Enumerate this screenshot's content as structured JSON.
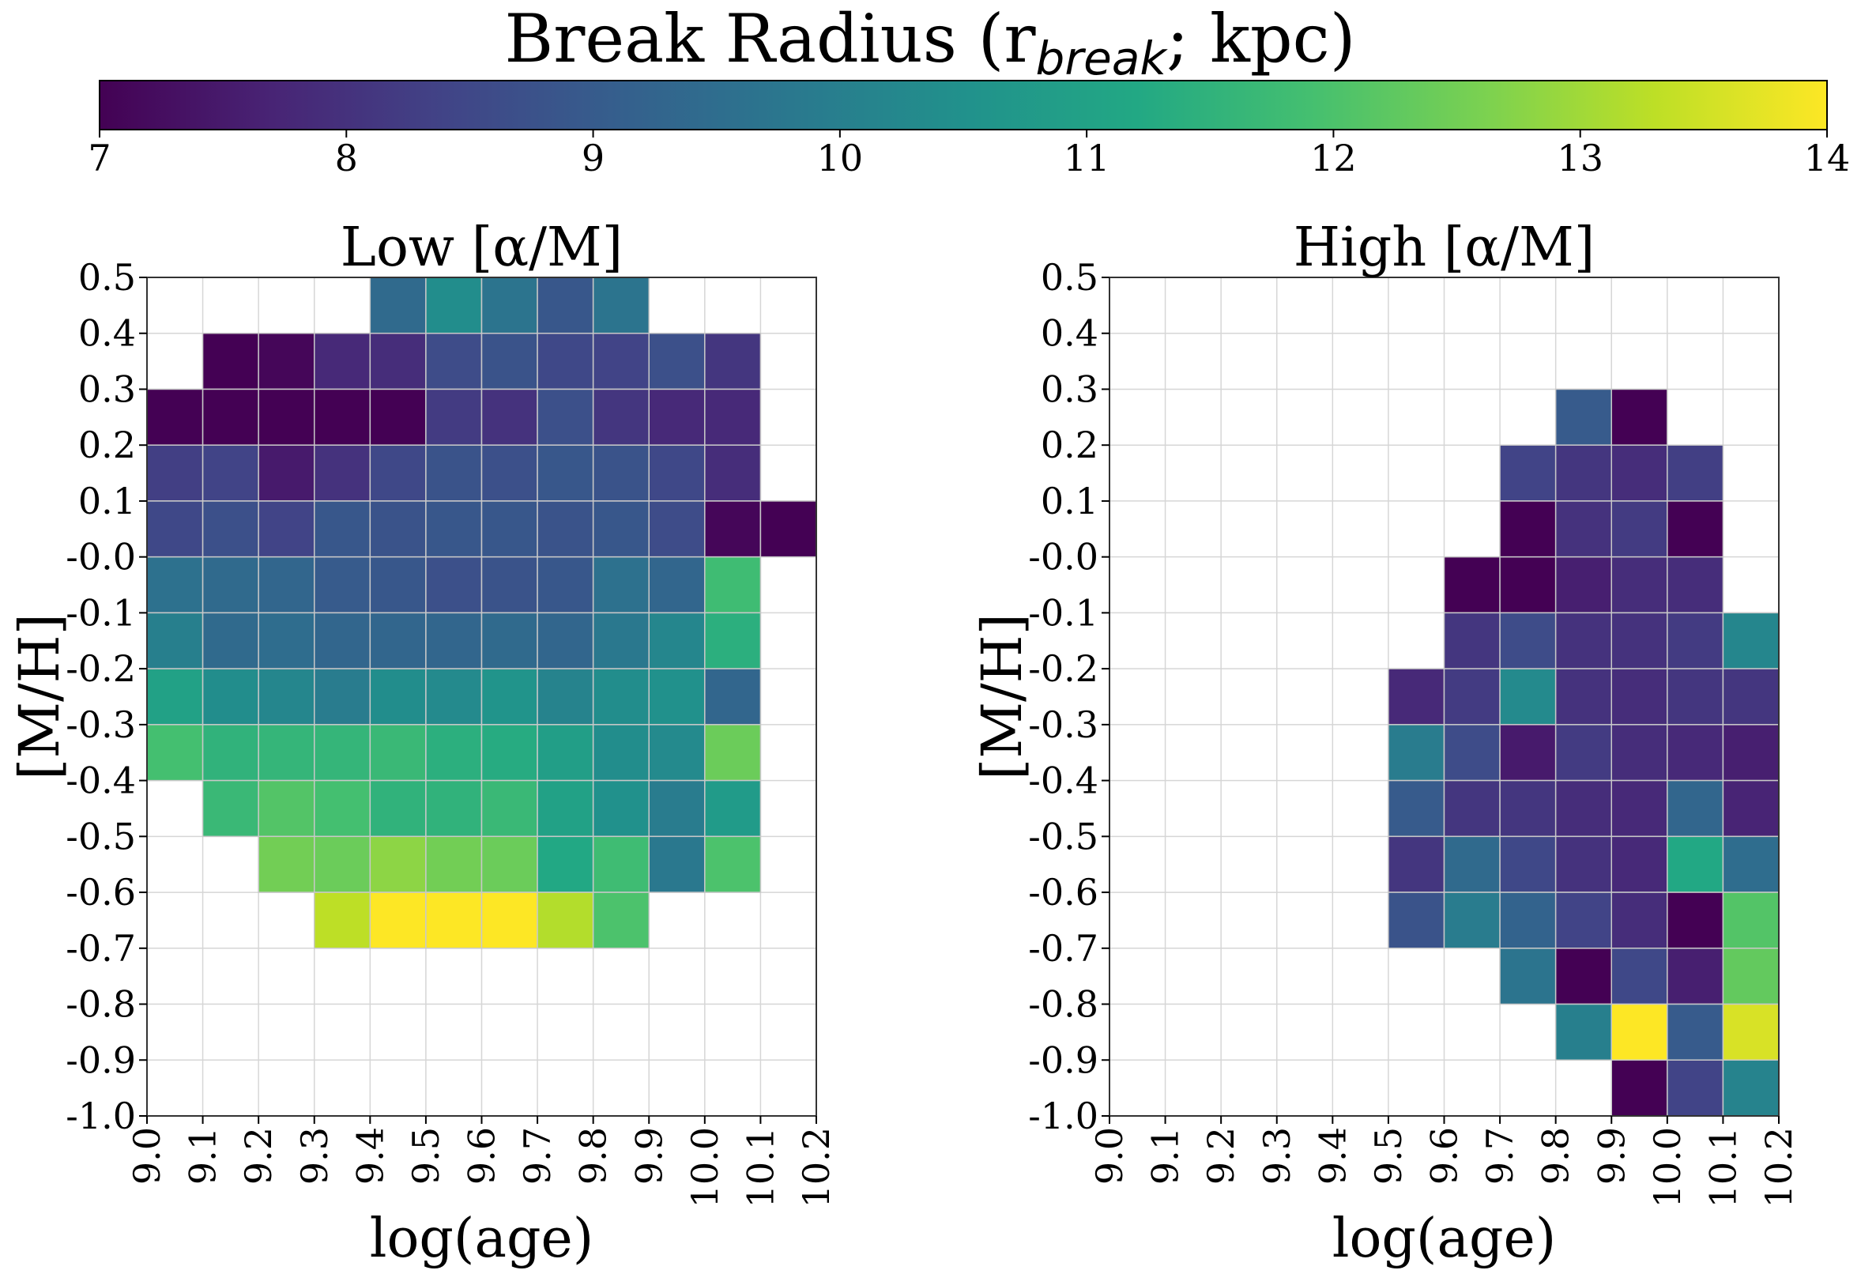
{
  "colorbar": {
    "label_main": "Break Radius (r",
    "label_sub": "break",
    "label_tail": "; kpc)",
    "vmin": 7,
    "vmax": 14,
    "ticks": [
      "7",
      "8",
      "9",
      "10",
      "11",
      "12",
      "13",
      "14"
    ],
    "colormap": "viridis"
  },
  "chart_data": [
    {
      "type": "heatmap",
      "title": "Low [α/M]",
      "xlabel": "log(age)",
      "ylabel": "[M/H]",
      "xlim": [
        9.0,
        10.2
      ],
      "ylim": [
        -1.0,
        0.5
      ],
      "x_ticks": [
        "9.0",
        "9.1",
        "9.2",
        "9.3",
        "9.4",
        "9.5",
        "9.6",
        "9.7",
        "9.8",
        "9.9",
        "10.0",
        "10.1",
        "10.2"
      ],
      "y_ticks": [
        "0.5",
        "0.4",
        "0.3",
        "0.2",
        "0.1",
        "-0.0",
        "-0.1",
        "-0.2",
        "-0.3",
        "-0.4",
        "-0.5",
        "-0.6",
        "-0.7",
        "-0.8",
        "-0.9",
        "-1.0"
      ],
      "x_bin_edges": [
        9.0,
        9.1,
        9.2,
        9.3,
        9.4,
        9.5,
        9.6,
        9.7,
        9.8,
        9.9,
        10.0,
        10.1,
        10.2
      ],
      "y_bin_edges_top_to_bottom": [
        0.5,
        0.4,
        0.3,
        0.2,
        0.1,
        0.0,
        -0.1,
        -0.2,
        -0.3,
        -0.4,
        -0.5,
        -0.6,
        -0.7,
        -0.8,
        -0.9,
        -1.0
      ],
      "grid": true,
      "values": [
        [
          null,
          null,
          null,
          null,
          9.4,
          10.4,
          9.7,
          8.9,
          9.7,
          null,
          null,
          null
        ],
        [
          null,
          7.0,
          7.1,
          7.8,
          7.9,
          8.6,
          8.8,
          8.5,
          8.4,
          8.7,
          8.1,
          null
        ],
        [
          7.0,
          7.0,
          7.0,
          7.0,
          7.0,
          8.2,
          8.0,
          8.7,
          8.1,
          7.8,
          7.8,
          null
        ],
        [
          8.3,
          8.4,
          7.5,
          8.0,
          8.5,
          8.8,
          8.7,
          8.9,
          8.8,
          8.5,
          7.9,
          null
        ],
        [
          8.5,
          8.7,
          8.4,
          8.9,
          8.8,
          8.9,
          8.9,
          8.8,
          8.9,
          8.6,
          7.1,
          7.0
        ],
        [
          9.6,
          9.4,
          9.3,
          9.0,
          8.9,
          8.7,
          8.8,
          8.9,
          9.6,
          9.3,
          11.8,
          null
        ],
        [
          10.0,
          9.4,
          9.5,
          9.3,
          9.3,
          9.3,
          9.4,
          9.3,
          9.8,
          10.2,
          11.4,
          null
        ],
        [
          11.0,
          10.4,
          10.2,
          9.9,
          10.4,
          10.3,
          10.6,
          10.1,
          10.4,
          10.5,
          9.3,
          null
        ],
        [
          11.9,
          11.5,
          11.6,
          11.6,
          11.7,
          11.4,
          11.3,
          10.9,
          10.4,
          10.3,
          12.4,
          null
        ],
        [
          null,
          11.7,
          12.1,
          11.9,
          11.5,
          11.5,
          11.7,
          11.0,
          10.5,
          9.9,
          10.8,
          null
        ],
        [
          null,
          null,
          12.5,
          12.4,
          12.8,
          12.5,
          12.4,
          11.2,
          11.8,
          9.8,
          12.0,
          null
        ],
        [
          null,
          null,
          null,
          13.3,
          14.0,
          14.0,
          14.0,
          13.2,
          12.0,
          null,
          null,
          null
        ],
        [
          null,
          null,
          null,
          null,
          null,
          null,
          null,
          null,
          null,
          null,
          null,
          null
        ],
        [
          null,
          null,
          null,
          null,
          null,
          null,
          null,
          null,
          null,
          null,
          null,
          null
        ],
        [
          null,
          null,
          null,
          null,
          null,
          null,
          null,
          null,
          null,
          null,
          null,
          null
        ]
      ]
    },
    {
      "type": "heatmap",
      "title": "High [α/M]",
      "xlabel": "log(age)",
      "ylabel": "[M/H]",
      "xlim": [
        9.0,
        10.2
      ],
      "ylim": [
        -1.0,
        0.5
      ],
      "x_ticks": [
        "9.0",
        "9.1",
        "9.2",
        "9.3",
        "9.4",
        "9.5",
        "9.6",
        "9.7",
        "9.8",
        "9.9",
        "10.0",
        "10.1",
        "10.2"
      ],
      "y_ticks": [
        "0.5",
        "0.4",
        "0.3",
        "0.2",
        "0.1",
        "-0.0",
        "-0.1",
        "-0.2",
        "-0.3",
        "-0.4",
        "-0.5",
        "-0.6",
        "-0.7",
        "-0.8",
        "-0.9",
        "-1.0"
      ],
      "x_bin_edges": [
        9.0,
        9.1,
        9.2,
        9.3,
        9.4,
        9.5,
        9.6,
        9.7,
        9.8,
        9.9,
        10.0,
        10.1,
        10.2
      ],
      "y_bin_edges_top_to_bottom": [
        0.5,
        0.4,
        0.3,
        0.2,
        0.1,
        0.0,
        -0.1,
        -0.2,
        -0.3,
        -0.4,
        -0.5,
        -0.6,
        -0.7,
        -0.8,
        -0.9,
        -1.0
      ],
      "grid": true,
      "values": [
        [
          null,
          null,
          null,
          null,
          null,
          null,
          null,
          null,
          null,
          null,
          null,
          null
        ],
        [
          null,
          null,
          null,
          null,
          null,
          null,
          null,
          null,
          null,
          null,
          null,
          null
        ],
        [
          null,
          null,
          null,
          null,
          null,
          null,
          null,
          null,
          9.0,
          7.0,
          null,
          null
        ],
        [
          null,
          null,
          null,
          null,
          null,
          null,
          null,
          8.4,
          8.1,
          7.9,
          8.3,
          null
        ],
        [
          null,
          null,
          null,
          null,
          null,
          null,
          null,
          7.0,
          8.0,
          8.2,
          7.0,
          null
        ],
        [
          null,
          null,
          null,
          null,
          null,
          null,
          7.0,
          7.0,
          7.6,
          7.9,
          7.9,
          null
        ],
        [
          null,
          null,
          null,
          null,
          null,
          null,
          8.1,
          8.6,
          8.0,
          8.0,
          8.2,
          10.2
        ],
        [
          null,
          null,
          null,
          null,
          null,
          7.8,
          8.2,
          10.3,
          8.0,
          7.9,
          8.1,
          8.1
        ],
        [
          null,
          null,
          null,
          null,
          null,
          9.9,
          8.6,
          7.5,
          8.2,
          7.9,
          7.8,
          7.6
        ],
        [
          null,
          null,
          null,
          null,
          null,
          9.0,
          8.1,
          8.1,
          7.9,
          7.8,
          9.3,
          7.7
        ],
        [
          null,
          null,
          null,
          null,
          null,
          8.1,
          9.4,
          8.5,
          8.0,
          7.8,
          11.2,
          9.5
        ],
        [
          null,
          null,
          null,
          null,
          null,
          8.8,
          9.9,
          9.2,
          8.4,
          7.9,
          7.0,
          12.1
        ],
        [
          null,
          null,
          null,
          null,
          null,
          null,
          null,
          9.7,
          7.0,
          8.5,
          7.6,
          12.3
        ],
        [
          null,
          null,
          null,
          null,
          null,
          null,
          null,
          null,
          10.0,
          14.0,
          9.0,
          13.6
        ],
        [
          null,
          null,
          null,
          null,
          null,
          null,
          null,
          null,
          null,
          7.0,
          8.4,
          10.1
        ]
      ]
    }
  ]
}
